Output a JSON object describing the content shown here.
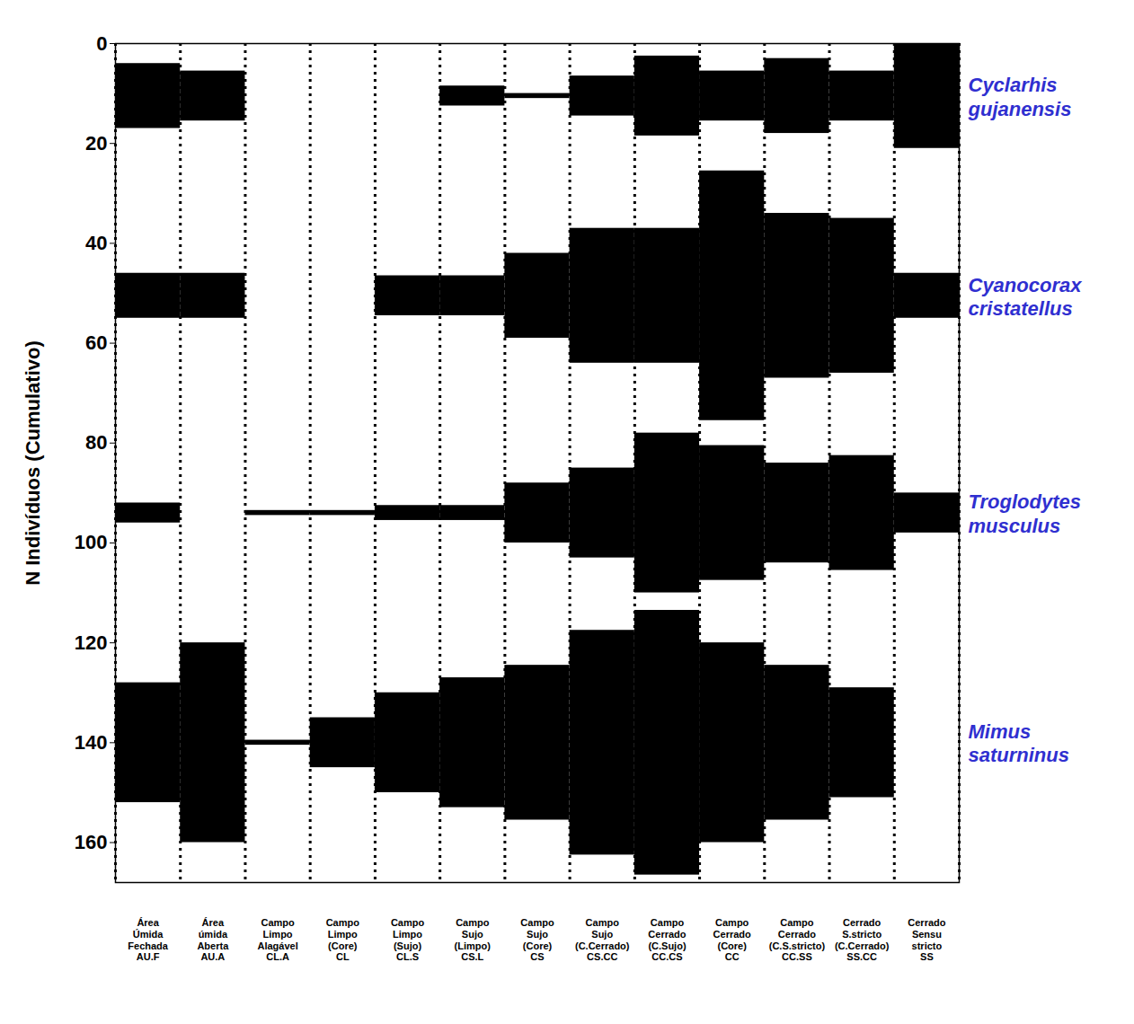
{
  "chart_data": {
    "type": "kite",
    "y_label": "N Indivíduos (Cumulativo)",
    "ylim": [
      0,
      168
    ],
    "yticks": [
      0,
      20,
      40,
      60,
      80,
      100,
      120,
      140,
      160
    ],
    "categories": [
      "Área Úmida Fechada AU.F",
      "Área úmida Aberta AU.A",
      "Campo Limpo Alagável CL.A",
      "Campo Limpo (Core) CL",
      "Campo Limpo (Sujo) CL.S",
      "Campo Sujo (Limpo) CS.L",
      "Campo Sujo (Core) CS",
      "Campo Sujo (C.Cerrado) CS.CC",
      "Campo Cerrado (C.Sujo) CC.CS",
      "Campo Cerrado (Core) CC",
      "Campo Cerrado (C.S.stricto) CC.SS",
      "Cerrado S.stricto (C.Cerrado) SS.CC",
      "Cerrado Sensu stricto SS"
    ],
    "series": [
      {
        "name": "Cyclarhis gujanensis",
        "color": "#000000",
        "baseline": 10.5,
        "values": [
          13,
          10,
          0,
          0,
          0,
          4,
          1,
          8,
          16,
          10,
          15,
          10,
          21
        ]
      },
      {
        "name": "Cyanocorax cristatellus",
        "color": "#000000",
        "baseline": 50.5,
        "values": [
          9,
          9,
          0,
          0,
          8,
          8,
          17,
          27,
          27,
          50,
          33,
          31,
          9
        ]
      },
      {
        "name": "Troglodytes musculus",
        "color": "#000000",
        "baseline": 94,
        "values": [
          4,
          0,
          1,
          1,
          3,
          3,
          12,
          18,
          32,
          27,
          20,
          23,
          8
        ]
      },
      {
        "name": "Mimus saturninus",
        "color": "#000000",
        "baseline": 140,
        "values": [
          24,
          40,
          1,
          10,
          20,
          26,
          31,
          45,
          53,
          40,
          31,
          22,
          0
        ]
      }
    ]
  }
}
